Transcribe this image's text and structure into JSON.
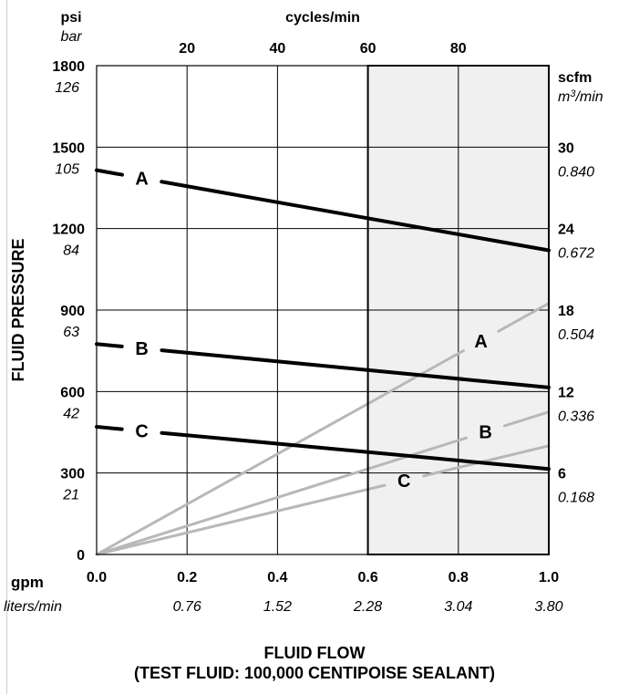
{
  "chart_data": {
    "type": "line",
    "top_axis": {
      "title": "cycles/min",
      "ticks": [
        "20",
        "40",
        "60",
        "80"
      ]
    },
    "left_axis": {
      "unit_primary": "psi",
      "unit_secondary": "bar",
      "title": "FLUID PRESSURE",
      "ticks_psi": [
        "1800",
        "1500",
        "1200",
        "900",
        "600",
        "300",
        "0"
      ],
      "ticks_bar": [
        "126",
        "105",
        "84",
        "63",
        "42",
        "21"
      ],
      "ylim": [
        0,
        1800
      ]
    },
    "right_axis": {
      "unit_primary": "scfm",
      "unit_secondary": "m3/min",
      "ticks_scfm": [
        "30",
        "24",
        "18",
        "12",
        "6"
      ],
      "ticks_m3": [
        "0.840",
        "0.672",
        "0.504",
        "0.336",
        "0.168"
      ],
      "ylim": [
        0,
        36
      ]
    },
    "bottom_axis": {
      "unit_primary": "gpm",
      "unit_secondary": "liters/min",
      "ticks_gpm": [
        "0.0",
        "0.2",
        "0.4",
        "0.6",
        "0.8",
        "1.0"
      ],
      "ticks_lpm": [
        "0.76",
        "1.52",
        "2.28",
        "3.04",
        "3.80"
      ],
      "xlim": [
        0,
        1.0
      ]
    },
    "shaded_region": {
      "x_from": 0.6,
      "x_to": 1.0
    },
    "pressure_series": [
      {
        "name": "A",
        "x": [
          0.0,
          1.0
        ],
        "y": [
          1415,
          1120
        ]
      },
      {
        "name": "B",
        "x": [
          0.0,
          1.0
        ],
        "y": [
          775,
          615
        ]
      },
      {
        "name": "C",
        "x": [
          0.0,
          1.0
        ],
        "y": [
          470,
          315
        ]
      }
    ],
    "air_series": [
      {
        "name": "A",
        "x": [
          0.0,
          1.0
        ],
        "y": [
          0,
          18.5
        ]
      },
      {
        "name": "B",
        "x": [
          0.0,
          1.0
        ],
        "y": [
          0,
          10.5
        ]
      },
      {
        "name": "C",
        "x": [
          0.0,
          1.0
        ],
        "y": [
          0,
          8.0
        ]
      }
    ],
    "xlabel": "FLUID FLOW",
    "subtitle": "(TEST FLUID: 100,000 CENTIPOISE SEALANT)",
    "colors": {
      "pressure": "#000000",
      "air": "#b8b8b8",
      "shade": "#f0f0f0"
    }
  }
}
